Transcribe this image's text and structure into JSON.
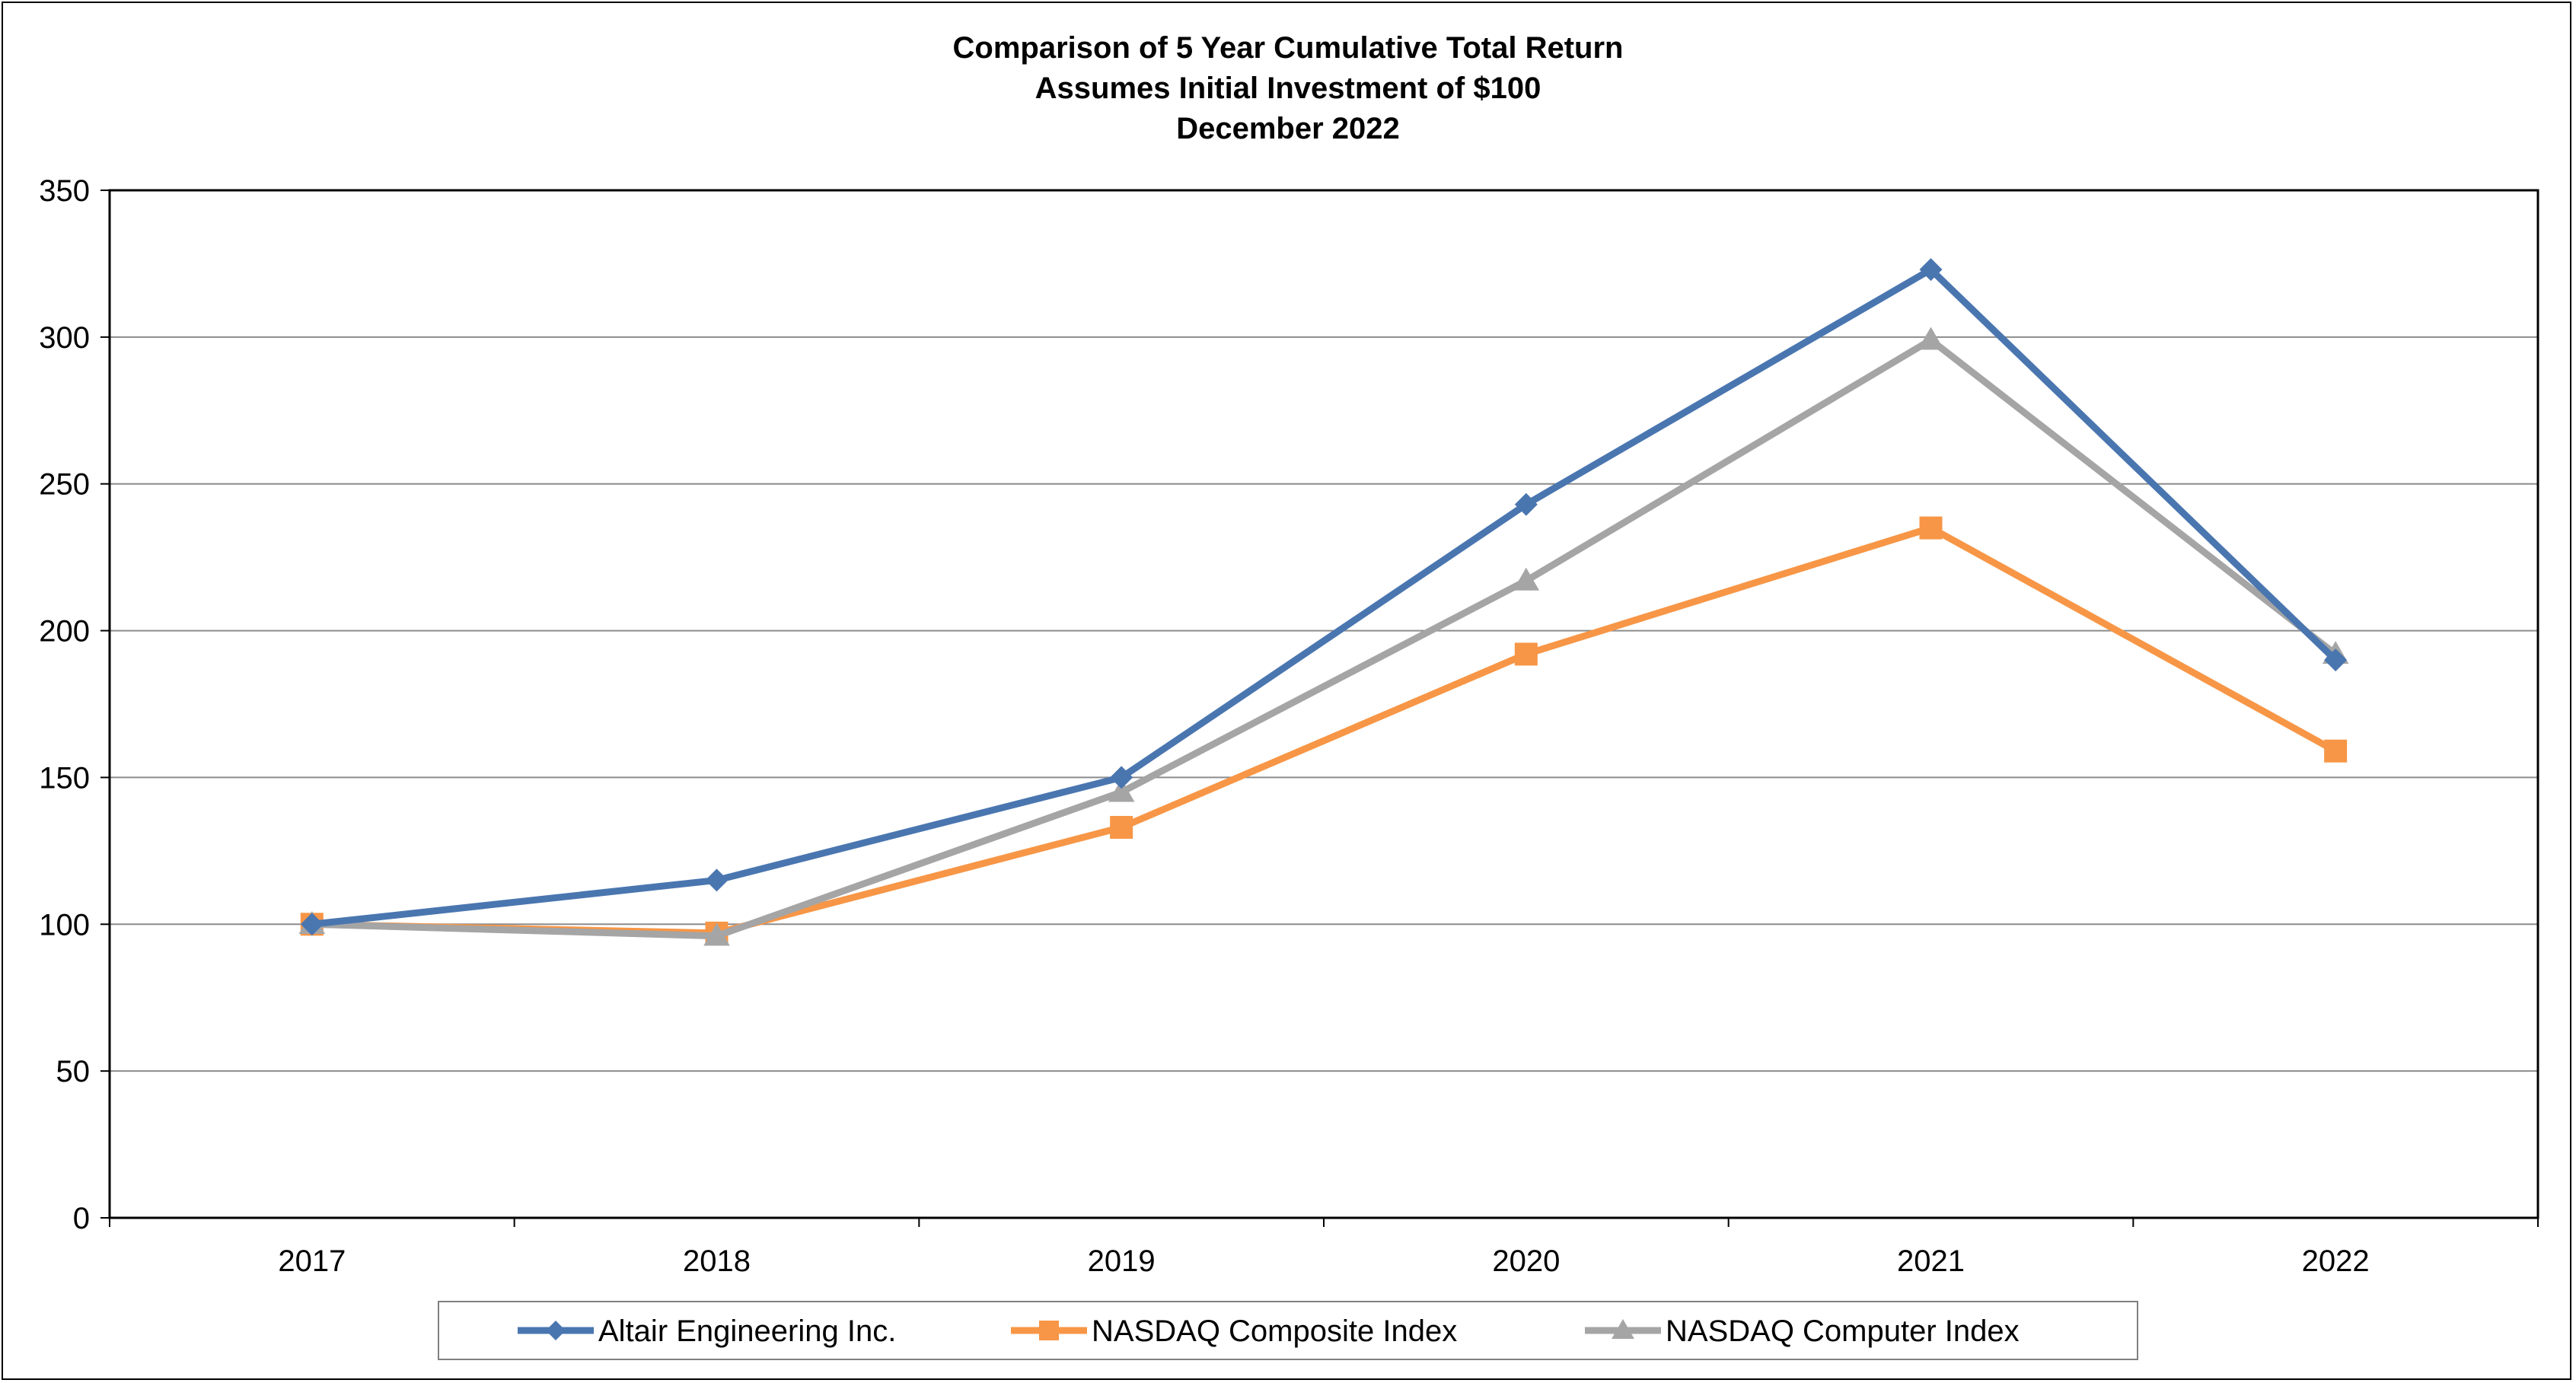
{
  "chart_data": {
    "type": "line",
    "title": "Comparison of 5 Year Cumulative Total Return",
    "subtitle": "Assumes Initial Investment of $100",
    "subtitle2": "December 2022",
    "xlabel": "",
    "ylabel": "",
    "categories": [
      "2017",
      "2018",
      "2019",
      "2020",
      "2021",
      "2022"
    ],
    "ylim": [
      0,
      350
    ],
    "yticks": [
      "0",
      "50",
      "100",
      "150",
      "200",
      "250",
      "300",
      "350"
    ],
    "grid": true,
    "legend_position": "bottom",
    "series": [
      {
        "name": "Altair Engineering Inc.",
        "values": [
          100,
          115,
          150,
          243,
          323,
          190
        ],
        "color": "#4a76b0",
        "marker": "diamond"
      },
      {
        "name": "NASDAQ Composite Index",
        "values": [
          100,
          97,
          133,
          192,
          235,
          159
        ],
        "color": "#f79646",
        "marker": "square"
      },
      {
        "name": "NASDAQ Computer Index",
        "values": [
          100,
          96,
          145,
          217,
          299,
          192
        ],
        "color": "#a5a5a5",
        "marker": "triangle"
      }
    ]
  }
}
